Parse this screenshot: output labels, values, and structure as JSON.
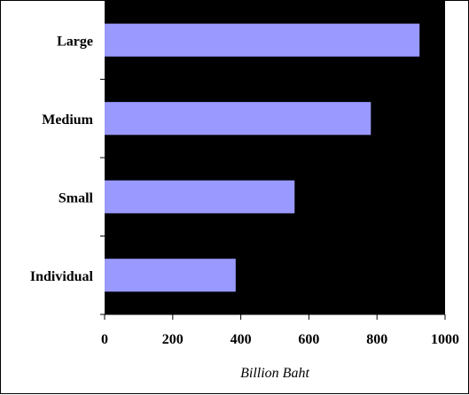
{
  "chart_data": {
    "type": "bar",
    "orientation": "horizontal",
    "categories": [
      "Individual",
      "Small",
      "Medium",
      "Large"
    ],
    "values": [
      385,
      558,
      782,
      925
    ],
    "xlabel": "Billion Baht",
    "ylabel": "",
    "xlim": [
      0,
      1000
    ],
    "xticks": [
      "0",
      "200",
      "400",
      "600",
      "800",
      "1000"
    ],
    "grid": false,
    "legend": "none",
    "colors": {
      "bar": "#9999ff",
      "plot_background": "#000000",
      "page_background": "#ffffff"
    }
  }
}
